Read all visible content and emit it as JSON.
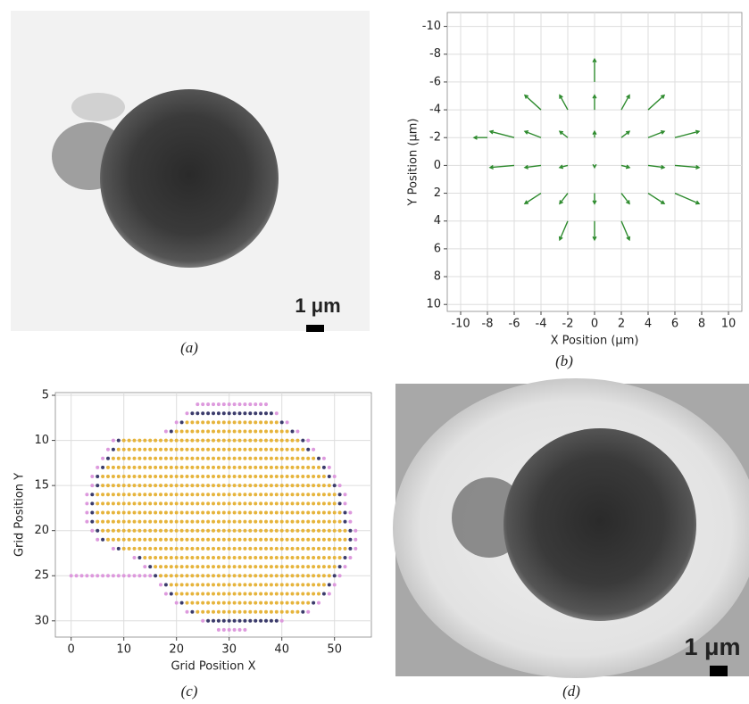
{
  "figure": {
    "panels": [
      {
        "label": "(a)",
        "scale_bar": "1 μm"
      },
      {
        "label": "(b)"
      },
      {
        "label": "(c)"
      },
      {
        "label": "(d)",
        "scale_bar": "1 μm"
      }
    ]
  },
  "chart_data": [
    {
      "type": "quiver",
      "xlabel": "X Position (μm)",
      "ylabel": "Y Position (μm)",
      "color": "#2e8b2e",
      "x": [
        -4,
        -2,
        0,
        2,
        4,
        -6,
        -4,
        -2,
        0,
        2,
        4,
        6,
        -6,
        -4,
        -2,
        0,
        2,
        4,
        6,
        -4,
        -2,
        0,
        2,
        4,
        6,
        -2,
        0,
        2,
        0,
        -8
      ],
      "y": [
        -4,
        -4,
        -4,
        -4,
        -4,
        -2,
        -2,
        -2,
        -2,
        -2,
        -2,
        -2,
        0,
        0,
        0,
        0,
        0,
        0,
        0,
        2,
        2,
        2,
        2,
        2,
        2,
        4,
        4,
        4,
        -6,
        -2
      ],
      "u": [
        -1.2,
        -0.6,
        0,
        0.6,
        1.2,
        -1.8,
        -1.2,
        -0.6,
        0,
        0.6,
        1.2,
        1.8,
        -1.8,
        -1.2,
        -0.6,
        0,
        0.6,
        1.2,
        1.8,
        -1.2,
        -0.6,
        0,
        0.6,
        1.2,
        1.8,
        -0.6,
        0,
        0.6,
        0,
        -1.0
      ],
      "v": [
        -1.05,
        -1.05,
        -1.05,
        -1.05,
        -1.05,
        -0.45,
        -0.45,
        -0.45,
        -0.45,
        -0.45,
        -0.45,
        -0.45,
        0.15,
        0.15,
        0.15,
        0.15,
        0.15,
        0.15,
        0.15,
        0.75,
        0.75,
        0.75,
        0.75,
        0.75,
        0.75,
        1.35,
        1.35,
        1.35,
        -1.65,
        0
      ],
      "xlim": [
        -11,
        11
      ],
      "ylim": [
        -11,
        10.5
      ],
      "y_inverted": true,
      "xticks": [
        -10,
        -8,
        -6,
        -4,
        -2,
        0,
        2,
        4,
        6,
        8,
        10
      ],
      "yticks": [
        -10,
        -8,
        -6,
        -4,
        -2,
        0,
        2,
        4,
        6,
        8,
        10
      ],
      "grid": true
    },
    {
      "type": "grid_scatter",
      "xlabel": "Grid Position X",
      "ylabel": "Grid Position Y",
      "xlim": [
        -3,
        57
      ],
      "ylim": [
        4.7,
        31.8
      ],
      "y_inverted": true,
      "xticks": [
        0,
        10,
        20,
        30,
        40,
        50
      ],
      "yticks": [
        5,
        10,
        15,
        20,
        25,
        30
      ],
      "grid": true,
      "series": [
        {
          "color": "#e6b43c",
          "runs": [
            [
              8,
              22,
              39
            ],
            [
              9,
              20,
              41
            ],
            [
              10,
              10,
              43
            ],
            [
              11,
              9,
              44
            ],
            [
              12,
              8,
              46
            ],
            [
              13,
              7,
              47
            ],
            [
              14,
              6,
              48
            ],
            [
              15,
              6,
              49
            ],
            [
              16,
              5,
              50
            ],
            [
              17,
              5,
              50
            ],
            [
              18,
              5,
              51
            ],
            [
              19,
              5,
              51
            ],
            [
              20,
              6,
              52
            ],
            [
              21,
              7,
              52
            ],
            [
              22,
              10,
              52
            ],
            [
              23,
              14,
              51
            ],
            [
              24,
              16,
              50
            ],
            [
              25,
              17,
              49
            ],
            [
              26,
              19,
              48
            ],
            [
              27,
              20,
              47
            ],
            [
              28,
              22,
              45
            ],
            [
              29,
              24,
              43
            ]
          ]
        },
        {
          "color": "#3b3b6b",
          "runs": [
            [
              7,
              23,
              38
            ],
            [
              8,
              21,
              21
            ],
            [
              8,
              40,
              40
            ],
            [
              9,
              19,
              19
            ],
            [
              9,
              42,
              42
            ],
            [
              10,
              9,
              9
            ],
            [
              10,
              44,
              44
            ],
            [
              11,
              8,
              8
            ],
            [
              11,
              45,
              45
            ],
            [
              12,
              7,
              7
            ],
            [
              12,
              47,
              47
            ],
            [
              13,
              6,
              6
            ],
            [
              13,
              48,
              48
            ],
            [
              14,
              5,
              5
            ],
            [
              14,
              49,
              49
            ],
            [
              15,
              5,
              5
            ],
            [
              15,
              50,
              50
            ],
            [
              16,
              4,
              4
            ],
            [
              16,
              51,
              51
            ],
            [
              17,
              4,
              4
            ],
            [
              17,
              51,
              51
            ],
            [
              18,
              4,
              4
            ],
            [
              18,
              52,
              52
            ],
            [
              19,
              4,
              4
            ],
            [
              19,
              52,
              52
            ],
            [
              20,
              5,
              5
            ],
            [
              20,
              53,
              53
            ],
            [
              21,
              6,
              6
            ],
            [
              21,
              53,
              53
            ],
            [
              22,
              9,
              9
            ],
            [
              22,
              53,
              53
            ],
            [
              23,
              13,
              13
            ],
            [
              23,
              52,
              52
            ],
            [
              24,
              15,
              15
            ],
            [
              24,
              51,
              51
            ],
            [
              25,
              16,
              16
            ],
            [
              25,
              50,
              50
            ],
            [
              26,
              18,
              18
            ],
            [
              26,
              49,
              49
            ],
            [
              27,
              19,
              19
            ],
            [
              27,
              48,
              48
            ],
            [
              28,
              21,
              21
            ],
            [
              28,
              46,
              46
            ],
            [
              29,
              23,
              23
            ],
            [
              29,
              44,
              44
            ],
            [
              30,
              26,
              39
            ]
          ]
        },
        {
          "color": "#dd99dd",
          "runs": [
            [
              6,
              24,
              37
            ],
            [
              7,
              22,
              22
            ],
            [
              7,
              39,
              39
            ],
            [
              8,
              20,
              20
            ],
            [
              8,
              41,
              41
            ],
            [
              9,
              18,
              18
            ],
            [
              9,
              43,
              43
            ],
            [
              10,
              8,
              8
            ],
            [
              10,
              45,
              45
            ],
            [
              11,
              7,
              7
            ],
            [
              11,
              46,
              46
            ],
            [
              12,
              6,
              6
            ],
            [
              12,
              48,
              48
            ],
            [
              13,
              5,
              5
            ],
            [
              13,
              49,
              49
            ],
            [
              14,
              4,
              4
            ],
            [
              14,
              50,
              50
            ],
            [
              15,
              4,
              4
            ],
            [
              15,
              51,
              51
            ],
            [
              16,
              3,
              3
            ],
            [
              16,
              52,
              52
            ],
            [
              17,
              3,
              3
            ],
            [
              17,
              52,
              52
            ],
            [
              18,
              3,
              3
            ],
            [
              18,
              53,
              53
            ],
            [
              19,
              3,
              3
            ],
            [
              19,
              53,
              53
            ],
            [
              20,
              4,
              4
            ],
            [
              20,
              54,
              54
            ],
            [
              21,
              5,
              5
            ],
            [
              21,
              54,
              54
            ],
            [
              22,
              8,
              8
            ],
            [
              22,
              54,
              54
            ],
            [
              23,
              12,
              12
            ],
            [
              23,
              53,
              53
            ],
            [
              24,
              14,
              14
            ],
            [
              24,
              52,
              52
            ],
            [
              25,
              0,
              15
            ],
            [
              25,
              51,
              51
            ],
            [
              26,
              17,
              17
            ],
            [
              26,
              50,
              50
            ],
            [
              27,
              18,
              18
            ],
            [
              27,
              49,
              49
            ],
            [
              28,
              20,
              20
            ],
            [
              28,
              47,
              47
            ],
            [
              29,
              22,
              22
            ],
            [
              29,
              45,
              45
            ],
            [
              30,
              25,
              25
            ],
            [
              30,
              40,
              40
            ],
            [
              31,
              28,
              33
            ]
          ]
        }
      ]
    }
  ]
}
